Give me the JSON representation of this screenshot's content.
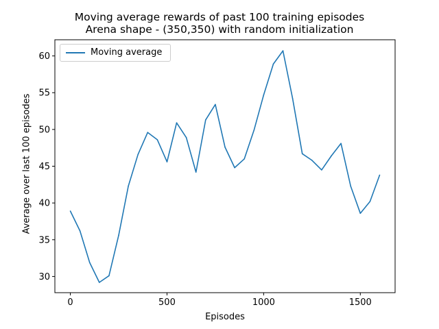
{
  "chart_data": {
    "type": "line",
    "title": "Moving average rewards of past 100 training episodes",
    "subtitle": "Arena shape - (350,350) with random initialization",
    "xlabel": "Episodes",
    "ylabel": "Average over last 100 episodes",
    "xlim": [
      -80,
      1680
    ],
    "ylim": [
      27.8,
      62.2
    ],
    "xticks": [
      0,
      500,
      1000,
      1500
    ],
    "yticks": [
      30,
      35,
      40,
      45,
      50,
      55,
      60
    ],
    "grid": false,
    "legend_position": "top-left",
    "series": [
      {
        "name": "Moving average",
        "color": "#1f77b4",
        "x": [
          0,
          50,
          100,
          150,
          200,
          250,
          300,
          350,
          400,
          450,
          500,
          550,
          600,
          650,
          700,
          750,
          800,
          850,
          900,
          950,
          1000,
          1050,
          1100,
          1150,
          1200,
          1250,
          1300,
          1350,
          1400,
          1450,
          1500,
          1550,
          1600
        ],
        "y": [
          38.9,
          36.2,
          31.9,
          29.2,
          30.1,
          35.6,
          42.3,
          46.6,
          49.6,
          48.6,
          45.6,
          50.9,
          48.9,
          44.2,
          51.3,
          53.4,
          47.6,
          44.8,
          46.0,
          49.9,
          54.7,
          58.9,
          60.7,
          54.2,
          46.7,
          45.8,
          44.5,
          46.4,
          48.1,
          42.3,
          38.6,
          40.2,
          43.8
        ]
      }
    ]
  }
}
